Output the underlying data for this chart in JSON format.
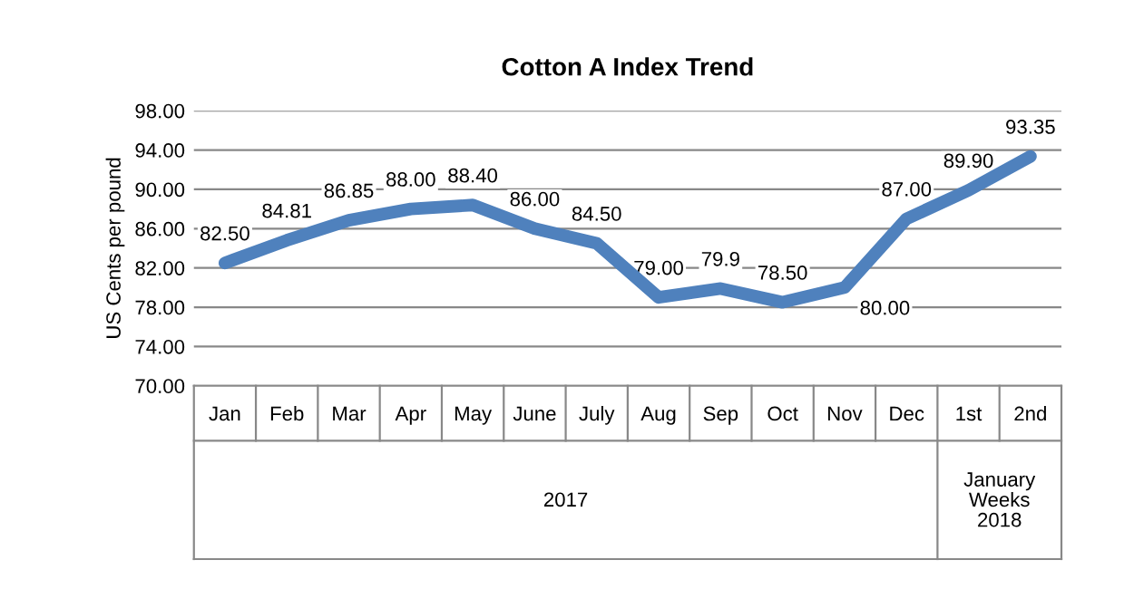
{
  "chart_data": {
    "type": "line",
    "title": "Cotton A Index Trend",
    "ylabel": "US Cents per pound",
    "categories": [
      "Jan",
      "Feb",
      "Mar",
      "Apr",
      "May",
      "June",
      "July",
      "Aug",
      "Sep",
      "Oct",
      "Nov",
      "Dec",
      "1st",
      "2nd"
    ],
    "series": [
      {
        "color": "#4f81bd",
        "values": [
          82.5,
          84.81,
          86.85,
          88.0,
          88.4,
          86.0,
          84.5,
          79.0,
          79.9,
          78.5,
          80.0,
          87.0,
          89.9,
          93.35
        ],
        "value_labels": [
          "82.50",
          "84.81",
          "86.85",
          "88.00",
          "88.40",
          "86.00",
          "84.50",
          "79.00",
          "79.9",
          "78.50",
          "80.00",
          "87.00",
          "89.90",
          "93.35"
        ]
      }
    ],
    "ylim": [
      70,
      98
    ],
    "yticks": [
      {
        "value": 70,
        "label": "70.00"
      },
      {
        "value": 74,
        "label": "74.00"
      },
      {
        "value": 78,
        "label": "78.00"
      },
      {
        "value": 82,
        "label": "82.00"
      },
      {
        "value": 86,
        "label": "86.00"
      },
      {
        "value": 90,
        "label": "90.00"
      },
      {
        "value": 94,
        "label": "94.00"
      },
      {
        "value": 98,
        "label": "98.00"
      }
    ],
    "grid": "y",
    "legend": false,
    "marker": "none",
    "line_style": "solid",
    "annotations": [
      "2017",
      "January\nWeeks\n2018"
    ]
  }
}
